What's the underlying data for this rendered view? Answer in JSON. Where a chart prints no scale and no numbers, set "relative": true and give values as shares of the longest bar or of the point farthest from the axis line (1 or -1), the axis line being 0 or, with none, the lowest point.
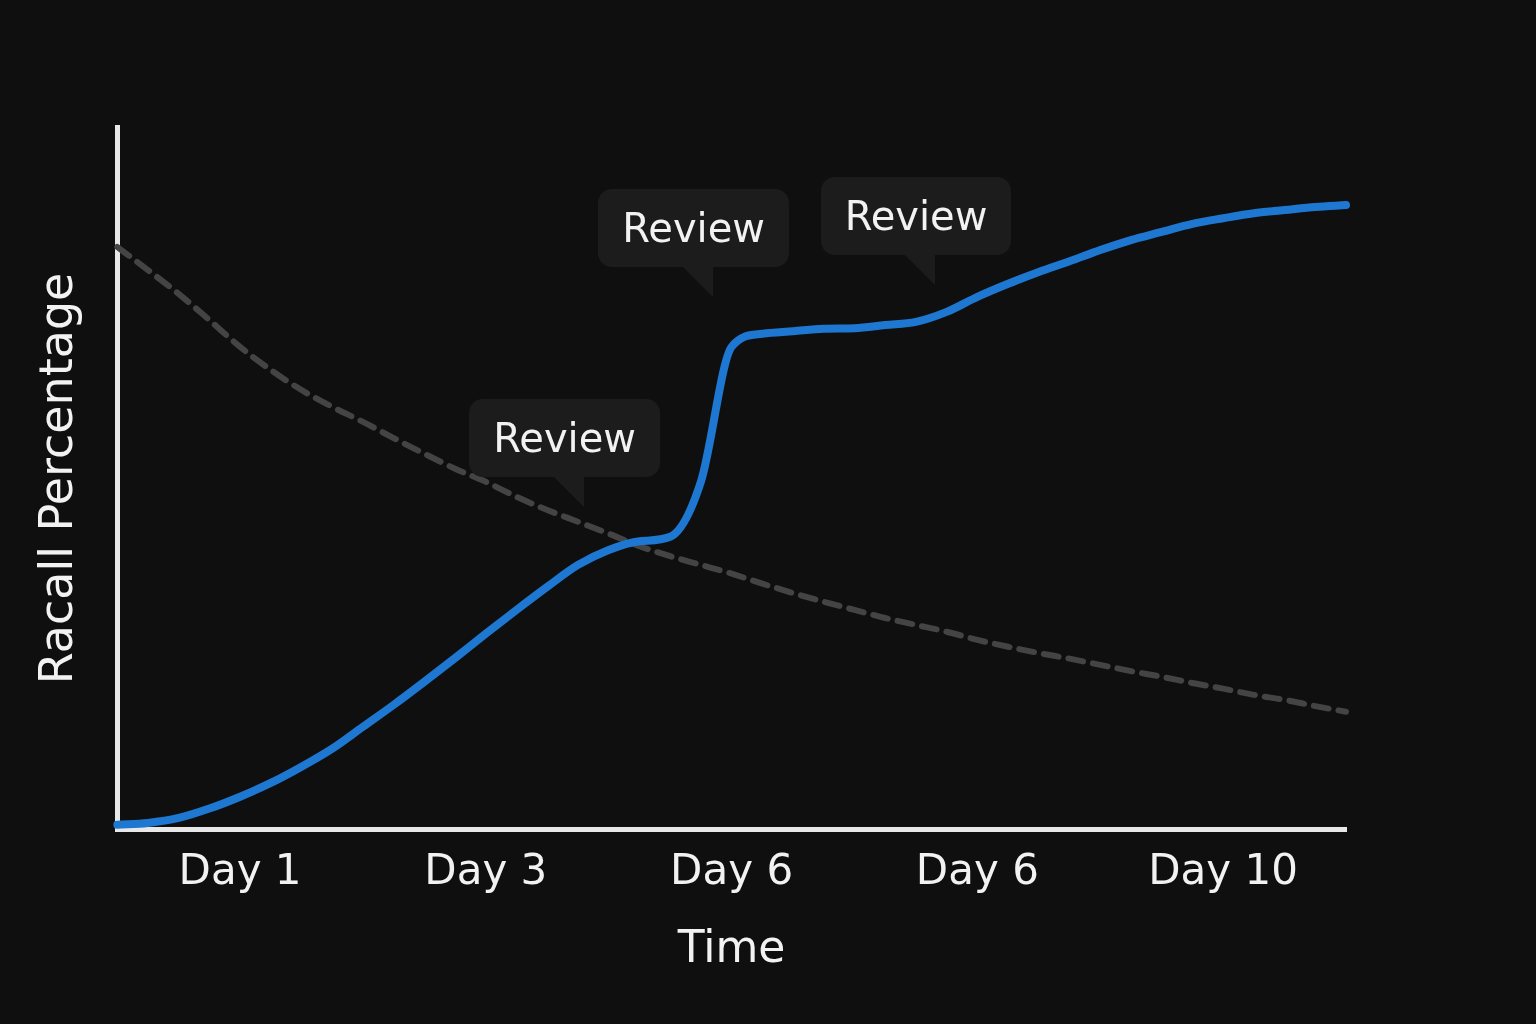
{
  "chart_data": {
    "type": "line",
    "xlabel": "Time",
    "ylabel": "Racall Percentage",
    "relative": true,
    "grid": false,
    "legend": false,
    "marker": "none",
    "categories": [
      null,
      null,
      null,
      null,
      "Day 1",
      null,
      null,
      null,
      null,
      null,
      null,
      null,
      "Day 3",
      null,
      null,
      null,
      null,
      null,
      null,
      null,
      "Day 6",
      null,
      null,
      null,
      null,
      null,
      null,
      null,
      "Day 6",
      null,
      null,
      null,
      null,
      null,
      null,
      null,
      "Day 10",
      null,
      null,
      null,
      null
    ],
    "series": [
      {
        "color": "#1e78d2",
        "line_style": "solid",
        "values": [
          0.008,
          0.011,
          0.019,
          0.034,
          0.053,
          0.075,
          0.101,
          0.13,
          0.165,
          0.2,
          0.237,
          0.275,
          0.314,
          0.352,
          0.389,
          0.424,
          0.448,
          0.462,
          0.469,
          0.557,
          0.773,
          0.794,
          0.798,
          0.802,
          0.803,
          0.808,
          0.813,
          0.829,
          0.853,
          0.874,
          0.893,
          0.91,
          0.928,
          0.944,
          0.957,
          0.97,
          0.979,
          0.987,
          0.992,
          0.997,
          1
        ]
      },
      {
        "color": "#444444",
        "line_style": "dashed",
        "values": [
          0.933,
          0.896,
          0.858,
          0.816,
          0.773,
          0.736,
          0.704,
          0.677,
          0.653,
          0.627,
          0.602,
          0.578,
          0.557,
          0.533,
          0.512,
          0.493,
          0.474,
          0.454,
          0.438,
          0.424,
          0.41,
          0.394,
          0.379,
          0.365,
          0.352,
          0.339,
          0.328,
          0.317,
          0.304,
          0.293,
          0.283,
          0.274,
          0.264,
          0.254,
          0.245,
          0.235,
          0.226,
          0.216,
          0.208,
          0.198,
          0.189
        ]
      }
    ],
    "annotations": [
      "Review",
      "Review",
      "Review"
    ]
  }
}
